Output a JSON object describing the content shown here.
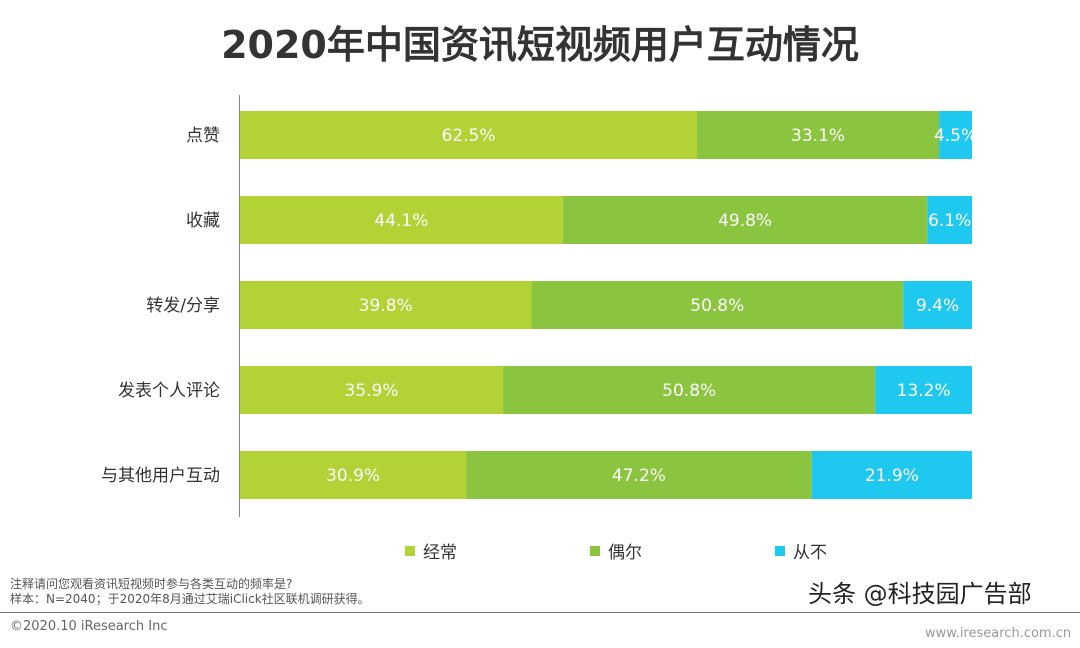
{
  "chart_data": {
    "type": "bar",
    "orientation": "horizontal",
    "stacked": true,
    "title": "2020年中国资讯短视频用户互动情况",
    "categories": [
      "点赞",
      "收藏",
      "转发/分享",
      "发表个人评论",
      "与其他用户互动"
    ],
    "series": [
      {
        "name": "经常",
        "color": "#b3d236",
        "values": [
          62.5,
          44.1,
          39.8,
          35.9,
          30.9
        ]
      },
      {
        "name": "偶尔",
        "color": "#8bc53f",
        "values": [
          33.1,
          49.8,
          50.8,
          50.8,
          47.2
        ]
      },
      {
        "name": "从不",
        "color": "#1ec8ee",
        "values": [
          4.5,
          6.1,
          9.4,
          13.2,
          21.9
        ]
      }
    ],
    "legend": "bottom",
    "grid": false
  },
  "footer": {
    "note": "注释请问您观看资讯短视频时参与各类互动的频率是?",
    "sample": "样本：N=2040；于2020年8月通过艾瑞iClick社区联机调研获得。",
    "copyright": "©2020.10 iResearch Inc",
    "site": "www.iresearch.com.cn",
    "watermark": "头条 @科技园广告部"
  }
}
